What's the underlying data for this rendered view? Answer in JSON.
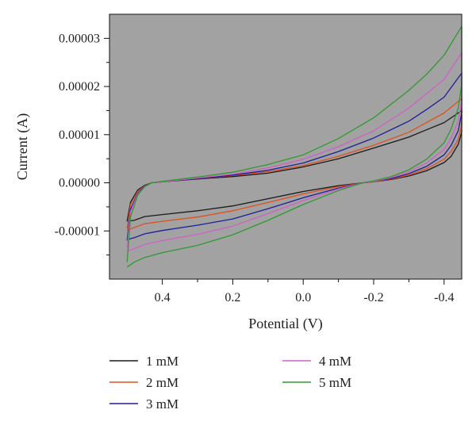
{
  "chart_data": {
    "type": "line",
    "title": "",
    "xlabel": "Potential (V)",
    "ylabel": "Current (A)",
    "x_reversed": true,
    "xlim": [
      0.55,
      -0.45
    ],
    "ylim": [
      -2e-05,
      3.5e-05
    ],
    "x_ticks": [
      0.4,
      0.2,
      0.0,
      -0.2,
      -0.4
    ],
    "x_tick_labels": [
      "0.4",
      "0.2",
      "0.0",
      "-0.2",
      "-0.4"
    ],
    "y_ticks": [
      -1e-05,
      0.0,
      1e-05,
      2e-05,
      3e-05
    ],
    "y_tick_labels": [
      "-0.00001",
      "0.00000",
      "0.00001",
      "0.00002",
      "0.00003"
    ],
    "plot_background": "#a2a2a2",
    "grid": false,
    "legend_position": "bottom",
    "series": [
      {
        "name": "1 mM",
        "color": "#1a1a1a",
        "forward_x": [
          0.5,
          0.49,
          0.47,
          0.45,
          0.43,
          0.4,
          0.3,
          0.2,
          0.1,
          0.0,
          -0.1,
          -0.2,
          -0.3,
          -0.35,
          -0.4,
          -0.45
        ],
        "forward_y": [
          -8e-06,
          -4e-06,
          -1.5e-06,
          -5e-07,
          0.0,
          2e-07,
          8e-07,
          1.3e-06,
          2e-06,
          3.3e-06,
          5e-06,
          7.2e-06,
          9.5e-06,
          1.1e-05,
          1.25e-05,
          1.5e-05
        ],
        "reverse_x": [
          -0.45,
          -0.44,
          -0.42,
          -0.4,
          -0.35,
          -0.3,
          -0.25,
          -0.2,
          -0.17,
          -0.1,
          0.0,
          0.1,
          0.2,
          0.3,
          0.4,
          0.45,
          0.48,
          0.5
        ],
        "reverse_y": [
          1.05e-05,
          8e-06,
          5.5e-06,
          4.2e-06,
          2.5e-06,
          1.4e-06,
          7e-07,
          2e-07,
          0.0,
          -6e-07,
          -1.8e-06,
          -3.3e-06,
          -4.8e-06,
          -5.8e-06,
          -6.6e-06,
          -7e-06,
          -7.8e-06,
          -8e-06
        ]
      },
      {
        "name": "2 mM",
        "color": "#e0501e",
        "forward_x": [
          0.5,
          0.49,
          0.47,
          0.45,
          0.43,
          0.4,
          0.3,
          0.2,
          0.1,
          0.0,
          -0.1,
          -0.2,
          -0.3,
          -0.35,
          -0.4,
          -0.45
        ],
        "forward_y": [
          -9.5e-06,
          -4.5e-06,
          -1.8e-06,
          -6e-07,
          0.0,
          2e-07,
          9e-07,
          1.5e-06,
          2.3e-06,
          3.6e-06,
          5.5e-06,
          7.8e-06,
          1.05e-05,
          1.25e-05,
          1.45e-05,
          1.75e-05
        ],
        "reverse_x": [
          -0.45,
          -0.44,
          -0.42,
          -0.4,
          -0.35,
          -0.3,
          -0.25,
          -0.2,
          -0.17,
          -0.1,
          0.0,
          0.1,
          0.2,
          0.3,
          0.4,
          0.45,
          0.48,
          0.5
        ],
        "reverse_y": [
          1.2e-05,
          9e-06,
          6.5e-06,
          4.9e-06,
          2.9e-06,
          1.6e-06,
          8e-07,
          2e-07,
          0.0,
          -8e-07,
          -2.3e-06,
          -4.1e-06,
          -5.8e-06,
          -7.1e-06,
          -8e-06,
          -8.5e-06,
          -9.3e-06,
          -9.8e-06
        ]
      },
      {
        "name": "3 mM",
        "color": "#1e1e9a",
        "forward_x": [
          0.5,
          0.49,
          0.47,
          0.45,
          0.43,
          0.4,
          0.3,
          0.2,
          0.1,
          0.0,
          -0.1,
          -0.2,
          -0.3,
          -0.35,
          -0.4,
          -0.45
        ],
        "forward_y": [
          -1.2e-05,
          -5.5e-06,
          -2.2e-06,
          -7e-07,
          0.0,
          2e-07,
          9e-07,
          1.6e-06,
          2.6e-06,
          4.1e-06,
          6.5e-06,
          9.3e-06,
          1.28e-05,
          1.52e-05,
          1.78e-05,
          2.28e-05
        ],
        "reverse_x": [
          -0.45,
          -0.44,
          -0.42,
          -0.4,
          -0.35,
          -0.3,
          -0.25,
          -0.2,
          -0.17,
          -0.1,
          0.0,
          0.1,
          0.2,
          0.3,
          0.4,
          0.45,
          0.48,
          0.5
        ],
        "reverse_y": [
          1.45e-05,
          1.08e-05,
          7.8e-06,
          5.8e-06,
          3.4e-06,
          1.9e-06,
          9e-07,
          3e-07,
          0.0,
          -1.1e-06,
          -3.1e-06,
          -5.4e-06,
          -7.5e-06,
          -8.8e-06,
          -9.9e-06,
          -1.06e-05,
          -1.14e-05,
          -1.18e-05
        ]
      },
      {
        "name": "4 mM",
        "color": "#d060c8",
        "forward_x": [
          0.5,
          0.49,
          0.47,
          0.45,
          0.43,
          0.4,
          0.3,
          0.2,
          0.1,
          0.0,
          -0.1,
          -0.2,
          -0.3,
          -0.35,
          -0.4,
          -0.45
        ],
        "forward_y": [
          -1.35e-05,
          -6e-06,
          -2.4e-06,
          -8e-07,
          0.0,
          2e-07,
          1e-06,
          1.8e-06,
          3.1e-06,
          4.9e-06,
          7.5e-06,
          1.08e-05,
          1.55e-05,
          1.85e-05,
          2.15e-05,
          2.7e-05
        ],
        "reverse_x": [
          -0.45,
          -0.44,
          -0.42,
          -0.4,
          -0.35,
          -0.3,
          -0.25,
          -0.2,
          -0.17,
          -0.1,
          0.0,
          0.1,
          0.2,
          0.3,
          0.4,
          0.45,
          0.48,
          0.5
        ],
        "reverse_y": [
          1.7e-05,
          1.28e-05,
          9.3e-06,
          6.9e-06,
          4.1e-06,
          2.3e-06,
          1.1e-06,
          3e-07,
          0.0,
          -1.3e-06,
          -3.7e-06,
          -6.4e-06,
          -9e-06,
          -1.07e-05,
          -1.2e-05,
          -1.28e-05,
          -1.37e-05,
          -1.42e-05
        ]
      },
      {
        "name": "5 mM",
        "color": "#2f9a2f",
        "forward_x": [
          0.5,
          0.49,
          0.47,
          0.45,
          0.43,
          0.4,
          0.3,
          0.2,
          0.1,
          0.0,
          -0.1,
          -0.2,
          -0.3,
          -0.35,
          -0.4,
          -0.45
        ],
        "forward_y": [
          -1.65e-05,
          -7e-06,
          -2.6e-06,
          -8e-07,
          0.0,
          3e-07,
          1.2e-06,
          2.2e-06,
          3.8e-06,
          5.8e-06,
          9.2e-06,
          1.35e-05,
          1.92e-05,
          2.25e-05,
          2.65e-05,
          3.25e-05
        ],
        "reverse_x": [
          -0.45,
          -0.44,
          -0.42,
          -0.4,
          -0.35,
          -0.3,
          -0.25,
          -0.2,
          -0.17,
          -0.1,
          0.0,
          0.1,
          0.2,
          0.3,
          0.4,
          0.45,
          0.48,
          0.5
        ],
        "reverse_y": [
          2.05e-05,
          1.55e-05,
          1.12e-05,
          8.3e-06,
          4.9e-06,
          2.7e-06,
          1.3e-06,
          4e-07,
          0.0,
          -1.6e-06,
          -4.5e-06,
          -7.8e-06,
          -1.08e-05,
          -1.3e-05,
          -1.45e-05,
          -1.55e-05,
          -1.65e-05,
          -1.75e-05
        ]
      }
    ]
  }
}
